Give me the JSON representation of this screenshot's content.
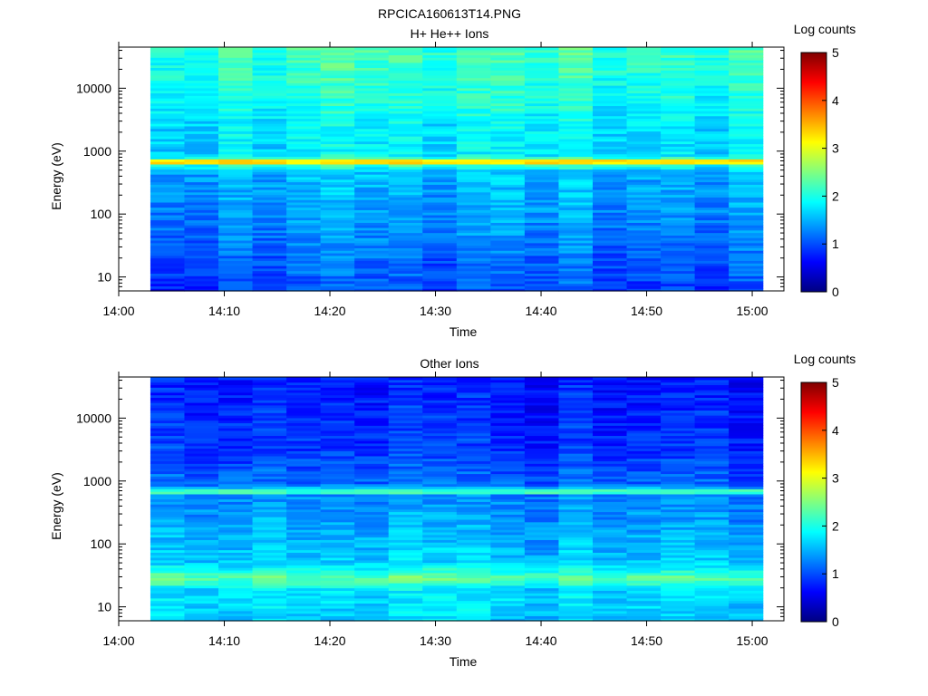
{
  "figure_title": "RPCICA160613T14.PNG",
  "colormap": [
    "#000080",
    "#0000ff",
    "#0080ff",
    "#00ffff",
    "#80ff80",
    "#ffff00",
    "#ff8000",
    "#ff0000",
    "#800000"
  ],
  "chart_data": [
    {
      "type": "heatmap",
      "title": "H+ He++ Ions",
      "xlabel": "Time",
      "ylabel": "Energy (eV)",
      "colorbar_label": "Log counts",
      "x_range": [
        "14:00",
        "15:03"
      ],
      "x_data_range": [
        "14:03",
        "15:01"
      ],
      "x_ticks": [
        "14:00",
        "14:10",
        "14:20",
        "14:30",
        "14:40",
        "14:50",
        "15:00"
      ],
      "y_scale": "log",
      "y_range": [
        6,
        45000
      ],
      "y_ticks": [
        "10",
        "100",
        "1000",
        "10000"
      ],
      "color_range": [
        0,
        5
      ],
      "color_ticks": [
        "0",
        "1",
        "2",
        "3",
        "4",
        "5"
      ],
      "time_bins": 18,
      "energy_bins": 96,
      "profile": {
        "description": "log counts vs energy",
        "points": [
          [
            6,
            0.95
          ],
          [
            10,
            1.05
          ],
          [
            20,
            1.15
          ],
          [
            40,
            1.25
          ],
          [
            100,
            1.4
          ],
          [
            300,
            1.5
          ],
          [
            500,
            1.6
          ],
          [
            620,
            2.2
          ],
          [
            680,
            3.0
          ],
          [
            740,
            2.3
          ],
          [
            900,
            1.75
          ],
          [
            3000,
            1.85
          ],
          [
            10000,
            2.05
          ],
          [
            45000,
            2.2
          ]
        ]
      },
      "bright_line_energy_eV": 690,
      "bright_line_peak_log_counts": 3.3
    },
    {
      "type": "heatmap",
      "title": "Other Ions",
      "xlabel": "Time",
      "ylabel": "Energy (eV)",
      "colorbar_label": "Log counts",
      "x_range": [
        "14:00",
        "15:03"
      ],
      "x_data_range": [
        "14:03",
        "15:01"
      ],
      "x_ticks": [
        "14:00",
        "14:10",
        "14:20",
        "14:30",
        "14:40",
        "14:50",
        "15:00"
      ],
      "y_scale": "log",
      "y_range": [
        6,
        45000
      ],
      "y_ticks": [
        "10",
        "100",
        "1000",
        "10000"
      ],
      "color_range": [
        0,
        5
      ],
      "color_ticks": [
        "0",
        "1",
        "2",
        "3",
        "4",
        "5"
      ],
      "time_bins": 18,
      "energy_bins": 96,
      "profile": {
        "description": "log counts vs energy",
        "points": [
          [
            6,
            1.6
          ],
          [
            20,
            1.7
          ],
          [
            24,
            2.1
          ],
          [
            30,
            2.3
          ],
          [
            36,
            2.0
          ],
          [
            50,
            1.6
          ],
          [
            200,
            1.4
          ],
          [
            600,
            1.25
          ],
          [
            660,
            1.9
          ],
          [
            700,
            2.1
          ],
          [
            750,
            1.7
          ],
          [
            900,
            1.1
          ],
          [
            3000,
            0.85
          ],
          [
            45000,
            0.7
          ]
        ]
      },
      "bright_line_energy_eV": 690,
      "bright_line_peak_log_counts": 2.2
    }
  ]
}
